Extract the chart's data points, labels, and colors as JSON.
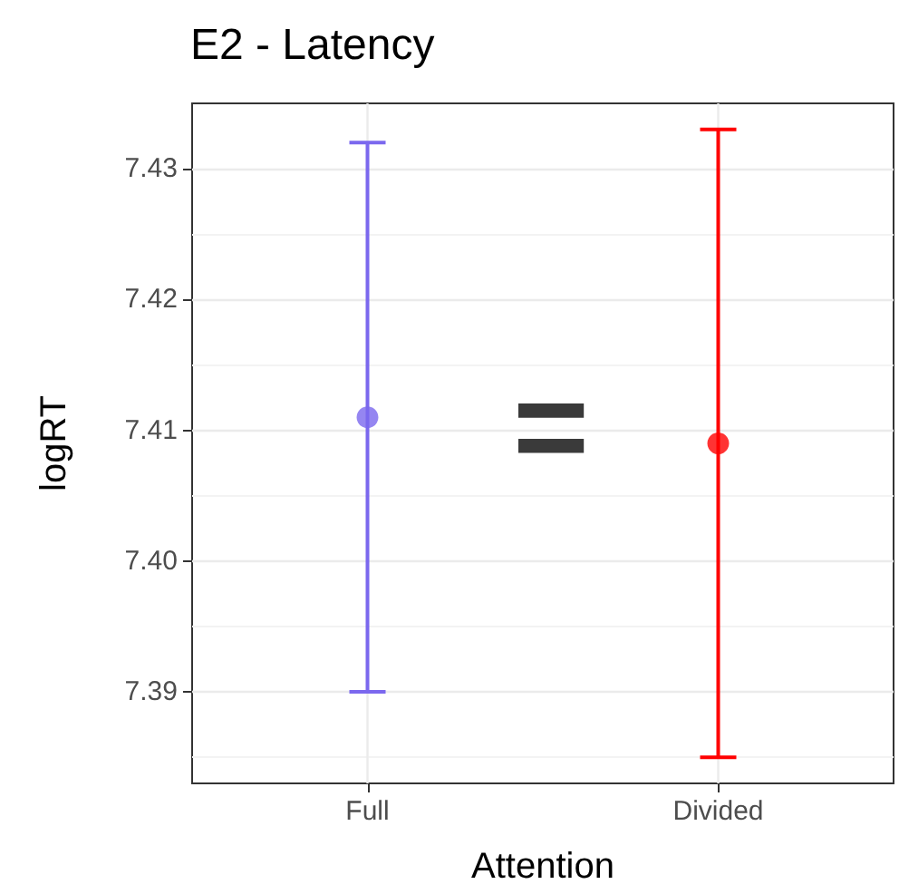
{
  "chart_data": {
    "type": "scatter",
    "title": "E2 - Latency",
    "xlabel": "Attention",
    "ylabel": "logRT",
    "categories": [
      "Full",
      "Divided"
    ],
    "values": [
      7.411,
      7.409
    ],
    "colors": [
      "#7b68ee",
      "#ff0000"
    ],
    "errors": [
      [
        7.39,
        7.432
      ],
      [
        7.385,
        7.433
      ]
    ],
    "ylim": [
      7.383,
      7.435
    ],
    "yticks": [
      7.39,
      {
        "value": 7.4,
        "label": "7.40"
      },
      7.41,
      7.42,
      7.43
    ],
    "annotations": [
      "="
    ],
    "grid": true,
    "marker": "circle"
  }
}
